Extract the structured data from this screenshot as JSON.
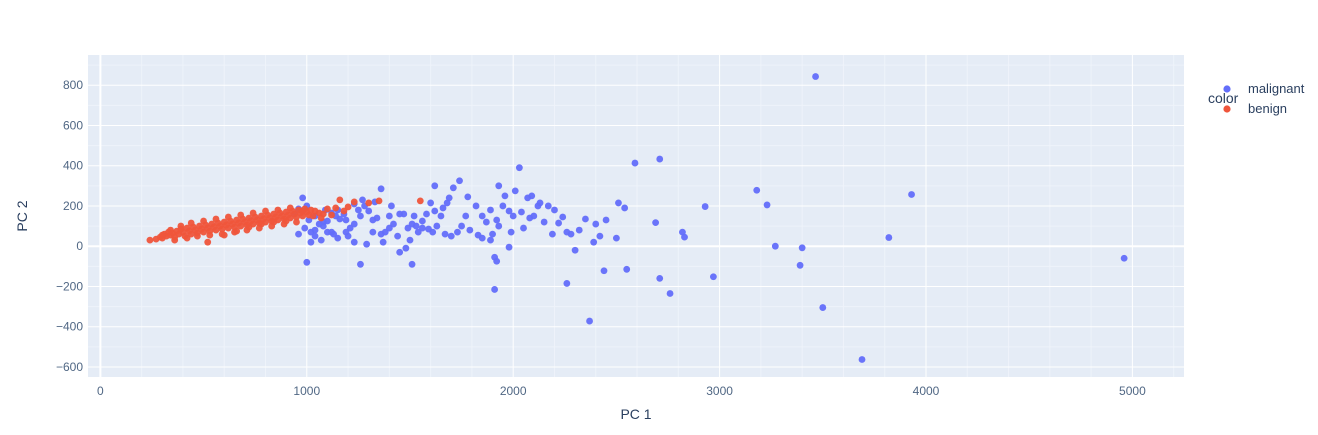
{
  "chart_data": {
    "type": "scatter",
    "title": "",
    "xlabel": "PC 1",
    "ylabel": "PC 2",
    "xlim": [
      -60,
      5250
    ],
    "ylim": [
      -650,
      950
    ],
    "x_ticks": [
      0,
      1000,
      2000,
      3000,
      4000,
      5000
    ],
    "y_ticks": [
      -600,
      -400,
      -200,
      0,
      200,
      400,
      600,
      800
    ],
    "grid": true,
    "legend": {
      "title": "color",
      "position": "top-right"
    },
    "series": [
      {
        "name": "malignant",
        "color": "#636efa",
        "points": [
          [
            3465,
            843
          ],
          [
            3930,
            257
          ],
          [
            4960,
            -60
          ],
          [
            3820,
            43
          ],
          [
            3180,
            278
          ],
          [
            3230,
            205
          ],
          [
            3270,
            0
          ],
          [
            3400,
            -8
          ],
          [
            3390,
            -95
          ],
          [
            3500,
            -305
          ],
          [
            3690,
            -563
          ],
          [
            2590,
            413
          ],
          [
            2710,
            433
          ],
          [
            2930,
            197
          ],
          [
            2970,
            -152
          ],
          [
            2820,
            70
          ],
          [
            2830,
            45
          ],
          [
            2690,
            117
          ],
          [
            2710,
            -160
          ],
          [
            2760,
            -235
          ],
          [
            2550,
            -115
          ],
          [
            2440,
            -122
          ],
          [
            2510,
            215
          ],
          [
            2500,
            40
          ],
          [
            2400,
            110
          ],
          [
            2370,
            -372
          ],
          [
            2260,
            -185
          ],
          [
            2320,
            80
          ],
          [
            2280,
            60
          ],
          [
            2390,
            20
          ],
          [
            2420,
            50
          ],
          [
            2450,
            130
          ],
          [
            2350,
            135
          ],
          [
            2220,
            115
          ],
          [
            2240,
            145
          ],
          [
            2200,
            180
          ],
          [
            2170,
            200
          ],
          [
            2130,
            215
          ],
          [
            2090,
            250
          ],
          [
            2070,
            240
          ],
          [
            2030,
            390
          ],
          [
            2010,
            275
          ],
          [
            1980,
            175
          ],
          [
            1960,
            250
          ],
          [
            1950,
            200
          ],
          [
            1920,
            130
          ],
          [
            1900,
            60
          ],
          [
            1930,
            100
          ],
          [
            1890,
            30
          ],
          [
            1910,
            -55
          ],
          [
            1920,
            -75
          ],
          [
            1910,
            -215
          ],
          [
            1870,
            120
          ],
          [
            1850,
            150
          ],
          [
            1820,
            200
          ],
          [
            1780,
            245
          ],
          [
            1740,
            325
          ],
          [
            1710,
            290
          ],
          [
            1690,
            240
          ],
          [
            1660,
            190
          ],
          [
            1650,
            150
          ],
          [
            1620,
            175
          ],
          [
            1600,
            215
          ],
          [
            1580,
            160
          ],
          [
            1560,
            125
          ],
          [
            1530,
            100
          ],
          [
            1510,
            110
          ],
          [
            1490,
            90
          ],
          [
            1470,
            160
          ],
          [
            1450,
            160
          ],
          [
            1420,
            110
          ],
          [
            1400,
            90
          ],
          [
            1380,
            70
          ],
          [
            1360,
            60
          ],
          [
            1340,
            140
          ],
          [
            1320,
            130
          ],
          [
            1300,
            175
          ],
          [
            1280,
            200
          ],
          [
            1250,
            180
          ],
          [
            1230,
            110
          ],
          [
            1210,
            90
          ],
          [
            1190,
            70
          ],
          [
            1160,
            135
          ],
          [
            1140,
            150
          ],
          [
            1120,
            165
          ],
          [
            1100,
            125
          ],
          [
            1080,
            120
          ],
          [
            1060,
            110
          ],
          [
            1040,
            80
          ],
          [
            1020,
            70
          ],
          [
            990,
            90
          ],
          [
            980,
            240
          ],
          [
            960,
            185
          ],
          [
            940,
            160
          ],
          [
            1000,
            -80
          ],
          [
            1020,
            20
          ],
          [
            1040,
            50
          ],
          [
            1070,
            30
          ],
          [
            1100,
            70
          ],
          [
            1130,
            60
          ],
          [
            1150,
            40
          ],
          [
            1200,
            50
          ],
          [
            1230,
            20
          ],
          [
            1260,
            -90
          ],
          [
            1290,
            10
          ],
          [
            1370,
            20
          ],
          [
            1450,
            -30
          ],
          [
            1480,
            -10
          ],
          [
            1510,
            -90
          ],
          [
            1540,
            70
          ],
          [
            1590,
            85
          ],
          [
            1630,
            100
          ],
          [
            1670,
            60
          ],
          [
            1700,
            50
          ],
          [
            1750,
            100
          ],
          [
            1790,
            80
          ],
          [
            1830,
            55
          ],
          [
            1980,
            -5
          ],
          [
            2100,
            150
          ],
          [
            2150,
            120
          ],
          [
            2300,
            -20
          ],
          [
            2050,
            90
          ],
          [
            2000,
            150
          ],
          [
            1890,
            180
          ],
          [
            1850,
            40
          ],
          [
            1680,
            215
          ],
          [
            1520,
            150
          ],
          [
            1410,
            200
          ],
          [
            1360,
            285
          ],
          [
            1330,
            220
          ],
          [
            1270,
            230
          ],
          [
            1230,
            210
          ],
          [
            1180,
            160
          ],
          [
            1090,
            180
          ],
          [
            1040,
            150
          ],
          [
            1010,
            130
          ],
          [
            1000,
            200
          ],
          [
            1120,
            70
          ],
          [
            1190,
            130
          ],
          [
            1260,
            150
          ],
          [
            1320,
            70
          ],
          [
            1440,
            50
          ],
          [
            1560,
            90
          ],
          [
            1610,
            70
          ],
          [
            1730,
            70
          ],
          [
            1770,
            150
          ],
          [
            1990,
            70
          ],
          [
            2040,
            170
          ],
          [
            2120,
            200
          ],
          [
            2190,
            60
          ],
          [
            2260,
            70
          ],
          [
            1620,
            300
          ],
          [
            1930,
            300
          ],
          [
            2080,
            140
          ],
          [
            2540,
            190
          ],
          [
            1400,
            150
          ],
          [
            1500,
            30
          ],
          [
            960,
            60
          ],
          [
            1080,
            100
          ],
          [
            1150,
            180
          ]
        ]
      },
      {
        "name": "benign",
        "color": "#ef553b",
        "points": [
          [
            240,
            30
          ],
          [
            270,
            35
          ],
          [
            290,
            45
          ],
          [
            300,
            40
          ],
          [
            320,
            50
          ],
          [
            310,
            60
          ],
          [
            330,
            70
          ],
          [
            340,
            55
          ],
          [
            350,
            65
          ],
          [
            360,
            45
          ],
          [
            370,
            75
          ],
          [
            380,
            60
          ],
          [
            390,
            85
          ],
          [
            400,
            70
          ],
          [
            410,
            50
          ],
          [
            420,
            90
          ],
          [
            430,
            75
          ],
          [
            440,
            60
          ],
          [
            450,
            95
          ],
          [
            460,
            80
          ],
          [
            470,
            65
          ],
          [
            480,
            100
          ],
          [
            490,
            85
          ],
          [
            500,
            70
          ],
          [
            510,
            105
          ],
          [
            520,
            90
          ],
          [
            530,
            75
          ],
          [
            540,
            110
          ],
          [
            550,
            95
          ],
          [
            560,
            80
          ],
          [
            570,
            115
          ],
          [
            580,
            100
          ],
          [
            590,
            85
          ],
          [
            600,
            120
          ],
          [
            610,
            105
          ],
          [
            620,
            90
          ],
          [
            630,
            125
          ],
          [
            640,
            110
          ],
          [
            650,
            95
          ],
          [
            660,
            130
          ],
          [
            670,
            115
          ],
          [
            680,
            100
          ],
          [
            690,
            135
          ],
          [
            700,
            120
          ],
          [
            710,
            105
          ],
          [
            720,
            140
          ],
          [
            730,
            125
          ],
          [
            740,
            110
          ],
          [
            750,
            145
          ],
          [
            760,
            130
          ],
          [
            770,
            115
          ],
          [
            780,
            150
          ],
          [
            790,
            135
          ],
          [
            800,
            120
          ],
          [
            810,
            155
          ],
          [
            820,
            140
          ],
          [
            830,
            125
          ],
          [
            840,
            160
          ],
          [
            850,
            145
          ],
          [
            860,
            130
          ],
          [
            870,
            165
          ],
          [
            880,
            150
          ],
          [
            890,
            135
          ],
          [
            900,
            170
          ],
          [
            910,
            155
          ],
          [
            920,
            140
          ],
          [
            930,
            175
          ],
          [
            940,
            160
          ],
          [
            950,
            145
          ],
          [
            960,
            180
          ],
          [
            970,
            165
          ],
          [
            980,
            150
          ],
          [
            990,
            185
          ],
          [
            1000,
            170
          ],
          [
            1010,
            155
          ],
          [
            1020,
            180
          ],
          [
            1040,
            175
          ],
          [
            1060,
            165
          ],
          [
            1080,
            160
          ],
          [
            1100,
            185
          ],
          [
            1160,
            230
          ],
          [
            1200,
            195
          ],
          [
            1230,
            220
          ],
          [
            1300,
            215
          ],
          [
            1350,
            225
          ],
          [
            1550,
            225
          ],
          [
            360,
            30
          ],
          [
            420,
            40
          ],
          [
            470,
            50
          ],
          [
            530,
            55
          ],
          [
            590,
            60
          ],
          [
            650,
            70
          ],
          [
            710,
            80
          ],
          [
            770,
            90
          ],
          [
            830,
            100
          ],
          [
            890,
            110
          ],
          [
            950,
            120
          ],
          [
            300,
            55
          ],
          [
            340,
            80
          ],
          [
            390,
            100
          ],
          [
            440,
            115
          ],
          [
            500,
            125
          ],
          [
            560,
            135
          ],
          [
            620,
            145
          ],
          [
            680,
            155
          ],
          [
            740,
            165
          ],
          [
            800,
            175
          ],
          [
            860,
            180
          ],
          [
            920,
            190
          ],
          [
            980,
            175
          ],
          [
            1030,
            150
          ],
          [
            1070,
            140
          ],
          [
            1120,
            155
          ],
          [
            1180,
            175
          ],
          [
            520,
            20
          ],
          [
            600,
            55
          ],
          [
            660,
            75
          ],
          [
            720,
            95
          ],
          [
            780,
            110
          ],
          [
            840,
            120
          ],
          [
            900,
            125
          ],
          [
            1140,
            190
          ]
        ]
      }
    ]
  }
}
